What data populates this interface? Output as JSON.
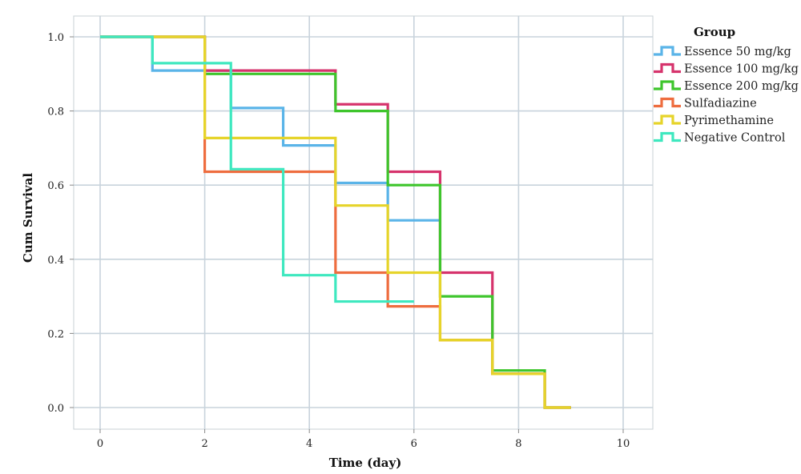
{
  "chart_data": {
    "type": "line",
    "step": true,
    "xlabel": "Time (day)",
    "ylabel": "Cum Survival",
    "xlim": [
      0,
      10
    ],
    "ylim": [
      0,
      1
    ],
    "xticks": [
      "0",
      "2",
      "4",
      "6",
      "8",
      "10"
    ],
    "yticks": [
      "0.0",
      "0.2",
      "0.4",
      "0.6",
      "0.8",
      "1.0"
    ],
    "grid": true,
    "legend": {
      "title": "Group",
      "position": "right"
    },
    "series": [
      {
        "name": "Essence 50 mg/kg",
        "color": "#5ab4e8",
        "x": [
          0,
          1,
          2,
          2.5,
          3.5,
          4.5,
          5.5,
          6.5
        ],
        "y": [
          1.0,
          0.909,
          0.909,
          0.808,
          0.707,
          0.606,
          0.505,
          0.505
        ]
      },
      {
        "name": "Essence 100 mg/kg",
        "color": "#d6336c",
        "x": [
          0,
          2,
          4.5,
          5.5,
          6.5,
          7.5,
          8.5,
          9
        ],
        "y": [
          1.0,
          0.909,
          0.818,
          0.636,
          0.364,
          0.091,
          0.0,
          0.0
        ]
      },
      {
        "name": "Essence 200 mg/kg",
        "color": "#3ec52c",
        "x": [
          0,
          2,
          4.5,
          5.5,
          6.5,
          7.5,
          8.5,
          9
        ],
        "y": [
          1.0,
          0.9,
          0.8,
          0.6,
          0.3,
          0.1,
          0.0,
          0.0
        ]
      },
      {
        "name": "Sulfadiazine",
        "color": "#ee6d3f",
        "x": [
          0,
          2,
          4.5,
          5.5,
          6.5,
          7.5,
          8.5,
          9
        ],
        "y": [
          1.0,
          0.636,
          0.364,
          0.273,
          0.182,
          0.091,
          0.0,
          0.0
        ]
      },
      {
        "name": "Pyrimethamine",
        "color": "#e6d42a",
        "x": [
          0,
          2,
          4.5,
          5.5,
          6.5,
          7.5,
          8.5,
          9
        ],
        "y": [
          1.0,
          0.727,
          0.545,
          0.364,
          0.182,
          0.091,
          0.0,
          0.0
        ]
      },
      {
        "name": "Negative Control",
        "color": "#3ee8bf",
        "x": [
          0,
          1,
          2.5,
          3.5,
          4.5,
          6
        ],
        "y": [
          1.0,
          0.929,
          0.643,
          0.357,
          0.286,
          0.286
        ]
      }
    ]
  }
}
